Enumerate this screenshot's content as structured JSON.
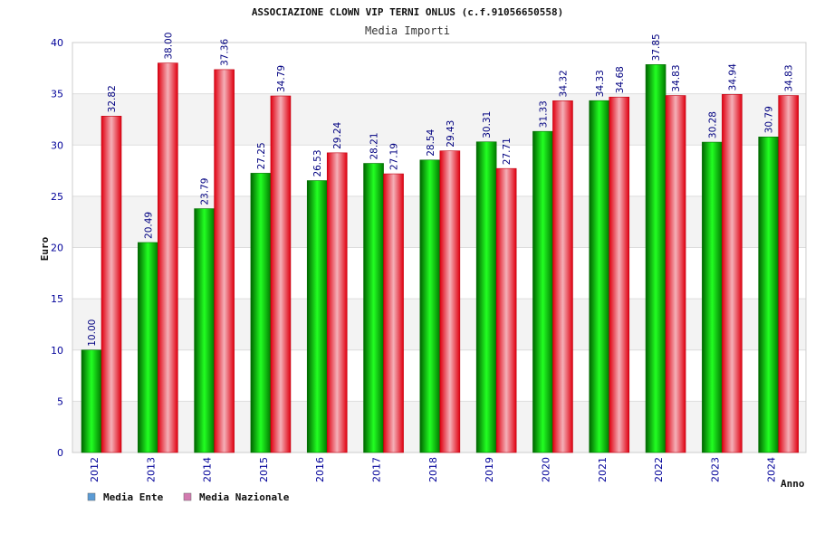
{
  "chart_data": {
    "type": "bar",
    "title": "ASSOCIAZIONE CLOWN VIP TERNI ONLUS (c.f.91056650558)",
    "subtitle": "Media Importi",
    "xlabel": "Anno",
    "ylabel": "Euro",
    "ylim": [
      0,
      40
    ],
    "yticks": [
      "0",
      "5",
      "10",
      "15",
      "20",
      "25",
      "30",
      "35",
      "40"
    ],
    "grid": true,
    "legend_position": "bottom-left",
    "categories": [
      "2012",
      "2013",
      "2014",
      "2015",
      "2016",
      "2017",
      "2018",
      "2019",
      "2020",
      "2021",
      "2022",
      "2023",
      "2024"
    ],
    "series": [
      {
        "name": "Media Ente",
        "values": [
          10.0,
          20.49,
          23.79,
          27.25,
          26.53,
          28.21,
          28.54,
          30.31,
          31.33,
          34.33,
          37.85,
          30.28,
          30.79
        ],
        "labels": [
          "10.00",
          "20.49",
          "23.79",
          "27.25",
          "26.53",
          "28.21",
          "28.54",
          "30.31",
          "31.33",
          "34.33",
          "37.85",
          "30.28",
          "30.79"
        ],
        "color": "#00c000"
      },
      {
        "name": "Media Nazionale",
        "values": [
          32.82,
          38.0,
          37.36,
          34.79,
          29.24,
          27.19,
          29.43,
          27.71,
          34.32,
          34.68,
          34.83,
          34.94,
          34.83
        ],
        "labels": [
          "32.82",
          "38.00",
          "37.36",
          "34.79",
          "29.24",
          "27.19",
          "29.43",
          "27.71",
          "34.32",
          "34.68",
          "34.83",
          "34.94",
          "34.83"
        ],
        "color": "#ee1c25"
      }
    ],
    "legend": [
      {
        "label": "Media Ente",
        "color": "#5b9bd5"
      },
      {
        "label": "Media Nazionale",
        "color": "#d37ab0"
      }
    ]
  }
}
